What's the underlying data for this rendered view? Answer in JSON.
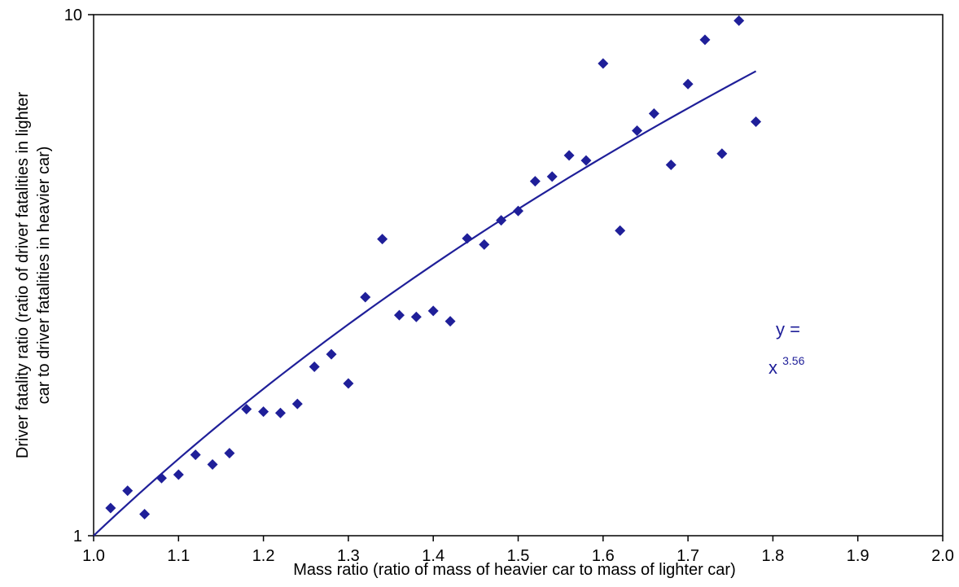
{
  "chart_data": {
    "type": "scatter",
    "title": "",
    "xlabel": "Mass ratio (ratio of mass of heavier car to mass of lighter car)",
    "ylabel_line1": "Driver fatality ratio (ratio of driver fatalities in lighter",
    "ylabel_line2": "car to driver fatalities in heavier car)",
    "xlim": [
      1.0,
      2.0
    ],
    "ylim": [
      1,
      10
    ],
    "y_scale": "log",
    "x_ticks": [
      "1.0",
      "1.1",
      "1.2",
      "1.3",
      "1.4",
      "1.5",
      "1.6",
      "1.7",
      "1.8",
      "1.9",
      "2.0"
    ],
    "y_ticks": [
      "1",
      "10"
    ],
    "grid": false,
    "legend": "none",
    "series": [
      {
        "marker": "diamond",
        "color": "#1f1f99",
        "points": [
          {
            "x": 1.02,
            "y": 1.13
          },
          {
            "x": 1.04,
            "y": 1.22
          },
          {
            "x": 1.06,
            "y": 1.1
          },
          {
            "x": 1.08,
            "y": 1.29
          },
          {
            "x": 1.1,
            "y": 1.31
          },
          {
            "x": 1.12,
            "y": 1.43
          },
          {
            "x": 1.14,
            "y": 1.37
          },
          {
            "x": 1.16,
            "y": 1.44
          },
          {
            "x": 1.18,
            "y": 1.75
          },
          {
            "x": 1.2,
            "y": 1.73
          },
          {
            "x": 1.22,
            "y": 1.72
          },
          {
            "x": 1.24,
            "y": 1.79
          },
          {
            "x": 1.26,
            "y": 2.11
          },
          {
            "x": 1.28,
            "y": 2.23
          },
          {
            "x": 1.3,
            "y": 1.96
          },
          {
            "x": 1.32,
            "y": 2.87
          },
          {
            "x": 1.34,
            "y": 3.71
          },
          {
            "x": 1.36,
            "y": 2.65
          },
          {
            "x": 1.38,
            "y": 2.63
          },
          {
            "x": 1.4,
            "y": 2.7
          },
          {
            "x": 1.42,
            "y": 2.58
          },
          {
            "x": 1.44,
            "y": 3.72
          },
          {
            "x": 1.46,
            "y": 3.62
          },
          {
            "x": 1.48,
            "y": 4.03
          },
          {
            "x": 1.5,
            "y": 4.2
          },
          {
            "x": 1.52,
            "y": 4.79
          },
          {
            "x": 1.54,
            "y": 4.89
          },
          {
            "x": 1.56,
            "y": 5.37
          },
          {
            "x": 1.58,
            "y": 5.25
          },
          {
            "x": 1.6,
            "y": 8.06
          },
          {
            "x": 1.62,
            "y": 3.85
          },
          {
            "x": 1.64,
            "y": 5.99
          },
          {
            "x": 1.66,
            "y": 6.46
          },
          {
            "x": 1.68,
            "y": 5.15
          },
          {
            "x": 1.7,
            "y": 7.36
          },
          {
            "x": 1.72,
            "y": 8.95
          },
          {
            "x": 1.74,
            "y": 5.41
          },
          {
            "x": 1.76,
            "y": 9.74
          },
          {
            "x": 1.78,
            "y": 6.23
          }
        ]
      }
    ],
    "trendline": {
      "type": "power",
      "exponent": 3.56,
      "x_range": [
        1.0,
        1.78
      ],
      "color": "#1f1f99"
    },
    "annotation": {
      "line1": "y =",
      "base": "x",
      "exponent": "3.56",
      "color": "#1f1f99"
    }
  }
}
